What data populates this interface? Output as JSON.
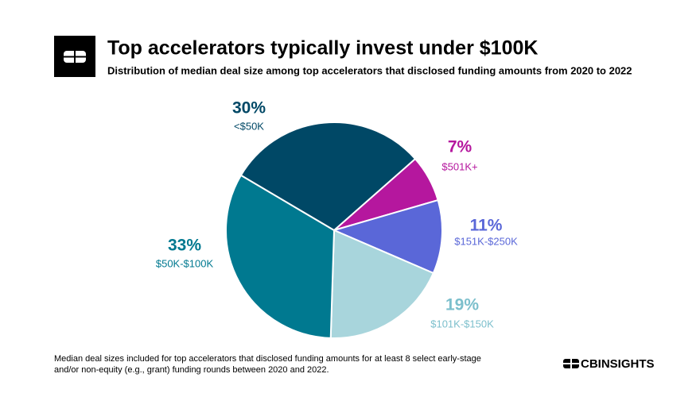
{
  "chart_data": {
    "type": "pie",
    "title": "Top accelerators typically invest under $100K",
    "subtitle": "Distribution of median deal size among top accelerators that disclosed funding amounts from 2020 to 2022",
    "categories": [
      "$501K+",
      "$151K-$250K",
      "$101K-$150K",
      "$50K-$100K",
      "<$50K"
    ],
    "values": [
      7,
      11,
      19,
      33,
      30
    ],
    "value_labels": [
      "7%",
      "11%",
      "19%",
      "33%",
      "30%"
    ],
    "colors": [
      "#b5179e",
      "#5a67d8",
      "#a8d5dc",
      "#007990",
      "#004866"
    ],
    "label_colors": [
      "#b5179e",
      "#5a67d8",
      "#7cbfcc",
      "#007990",
      "#004866"
    ],
    "footnote": "Median deal sizes included for top accelerators that disclosed funding amounts for at least 8 select early-stage and/or non-equity (e.g., grant) funding rounds between 2020 and 2022.",
    "brand": "CBINSIGHTS"
  }
}
